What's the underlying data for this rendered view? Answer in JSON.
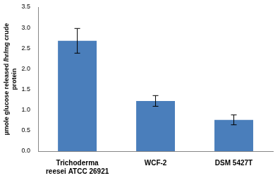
{
  "chart_data": {
    "type": "bar",
    "y_label": "µmole glucose released /hr/mg crude protein",
    "categories": [
      "Trichoderma reesei ATCC 26921",
      "WCF-2",
      "DSM 5427T"
    ],
    "values": [
      2.68,
      1.22,
      0.76
    ],
    "errors": [
      0.3,
      0.13,
      0.12
    ],
    "color": "#4a7ebb",
    "ylim": [
      0,
      3.5
    ],
    "yticks": [
      {
        "value": 0,
        "label": "0.0"
      },
      0.5,
      {
        "value": 1,
        "label": "1.0"
      },
      1.5,
      {
        "value": 2,
        "label": "2.0"
      },
      2.5,
      {
        "value": 3,
        "label": "3.0"
      },
      3.5
    ],
    "grid": false
  }
}
